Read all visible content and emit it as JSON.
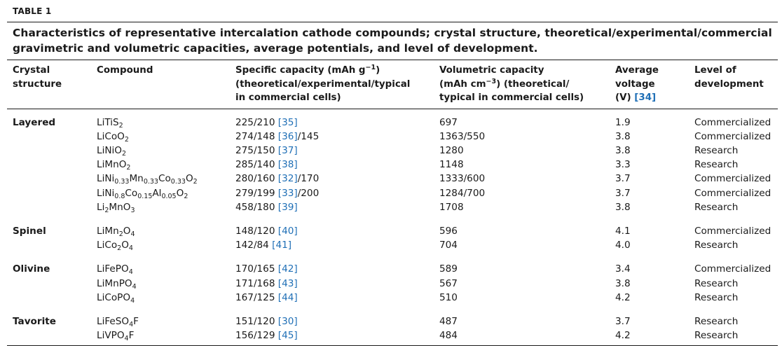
{
  "table_label": "TABLE 1",
  "caption": "Characteristics of representative intercalation cathode compounds; crystal structure, theoretical/experimental/commercial gravimetric and volumetric capacities, average potentials, and level of development.",
  "headers": {
    "crystal": "Crystal structure",
    "compound": "Compound",
    "specific_l1_a": "Specific capacity (mAh g",
    "specific_l1_sup": "−1",
    "specific_l1_b": ")",
    "specific_l2": "(theoretical/experimental/typical",
    "specific_l3": "in commercial cells)",
    "volumetric_l1": "Volumetric capacity",
    "volumetric_l2_a": "(mAh cm",
    "volumetric_l2_sup": "−3",
    "volumetric_l2_b": ") (theoretical/",
    "volumetric_l3": "typical in commercial cells)",
    "voltage_l1": "Average",
    "voltage_l2": "voltage",
    "voltage_l3_a": "(V) ",
    "voltage_ref": "[34]",
    "level": "Level of development"
  },
  "groups": [
    {
      "name": "Layered",
      "rows": [
        {
          "compound": [
            [
              "LiTiS",
              ""
            ],
            [
              "2",
              "sub"
            ]
          ],
          "spec": "225/210 ",
          "ref": "[35]",
          "spec_tail": "",
          "vol": "697",
          "volt": "1.9",
          "level": "Commercialized"
        },
        {
          "compound": [
            [
              "LiCoO",
              ""
            ],
            [
              "2",
              "sub"
            ]
          ],
          "spec": "274/148 ",
          "ref": "[36]",
          "spec_tail": "/145",
          "vol": "1363/550",
          "volt": "3.8",
          "level": "Commercialized"
        },
        {
          "compound": [
            [
              "LiNiO",
              ""
            ],
            [
              "2",
              "sub"
            ]
          ],
          "spec": "275/150 ",
          "ref": "[37]",
          "spec_tail": "",
          "vol": "1280",
          "volt": "3.8",
          "level": "Research"
        },
        {
          "compound": [
            [
              "LiMnO",
              ""
            ],
            [
              "2",
              "sub"
            ]
          ],
          "spec": "285/140 ",
          "ref": "[38]",
          "spec_tail": "",
          "vol": "1148",
          "volt": "3.3",
          "level": "Research"
        },
        {
          "compound": [
            [
              "LiNi",
              ""
            ],
            [
              "0.33",
              "sub"
            ],
            [
              "Mn",
              ""
            ],
            [
              "0.33",
              "sub"
            ],
            [
              "Co",
              ""
            ],
            [
              "0.33",
              "sub"
            ],
            [
              "O",
              ""
            ],
            [
              "2",
              "sub"
            ]
          ],
          "spec": "280/160 ",
          "ref": "[32]",
          "spec_tail": "/170",
          "vol": "1333/600",
          "volt": "3.7",
          "level": "Commercialized"
        },
        {
          "compound": [
            [
              "LiNi",
              ""
            ],
            [
              "0.8",
              "sub"
            ],
            [
              "Co",
              ""
            ],
            [
              "0.15",
              "sub"
            ],
            [
              "Al",
              ""
            ],
            [
              "0.05",
              "sub"
            ],
            [
              "O",
              ""
            ],
            [
              "2",
              "sub"
            ]
          ],
          "spec": "279/199 ",
          "ref": "[33]",
          "spec_tail": "/200",
          "vol": "1284/700",
          "volt": "3.7",
          "level": "Commercialized"
        },
        {
          "compound": [
            [
              "Li",
              ""
            ],
            [
              "2",
              "sub"
            ],
            [
              "MnO",
              ""
            ],
            [
              "3",
              "sub"
            ]
          ],
          "spec": "458/180 ",
          "ref": "[39]",
          "spec_tail": "",
          "vol": "1708",
          "volt": "3.8",
          "level": "Research"
        }
      ]
    },
    {
      "name": "Spinel",
      "rows": [
        {
          "compound": [
            [
              "LiMn",
              ""
            ],
            [
              "2",
              "sub"
            ],
            [
              "O",
              ""
            ],
            [
              "4",
              "sub"
            ]
          ],
          "spec": "148/120 ",
          "ref": "[40]",
          "spec_tail": "",
          "vol": "596",
          "volt": "4.1",
          "level": "Commercialized"
        },
        {
          "compound": [
            [
              "LiCo",
              ""
            ],
            [
              "2",
              "sub"
            ],
            [
              "O",
              ""
            ],
            [
              "4",
              "sub"
            ]
          ],
          "spec": "142/84 ",
          "ref": "[41]",
          "spec_tail": "",
          "vol": "704",
          "volt": "4.0",
          "level": "Research"
        }
      ]
    },
    {
      "name": "Olivine",
      "rows": [
        {
          "compound": [
            [
              "LiFePO",
              ""
            ],
            [
              "4",
              "sub"
            ]
          ],
          "spec": "170/165 ",
          "ref": "[42]",
          "spec_tail": "",
          "vol": "589",
          "volt": "3.4",
          "level": "Commercialized"
        },
        {
          "compound": [
            [
              "LiMnPO",
              ""
            ],
            [
              "4",
              "sub"
            ]
          ],
          "spec": "171/168 ",
          "ref": "[43]",
          "spec_tail": "",
          "vol": "567",
          "volt": "3.8",
          "level": "Research"
        },
        {
          "compound": [
            [
              "LiCoPO",
              ""
            ],
            [
              "4",
              "sub"
            ]
          ],
          "spec": "167/125 ",
          "ref": "[44]",
          "spec_tail": "",
          "vol": "510",
          "volt": "4.2",
          "level": "Research"
        }
      ]
    },
    {
      "name": "Tavorite",
      "rows": [
        {
          "compound": [
            [
              "LiFeSO",
              ""
            ],
            [
              "4",
              "sub"
            ],
            [
              "F",
              ""
            ]
          ],
          "spec": "151/120 ",
          "ref": "[30]",
          "spec_tail": "",
          "vol": "487",
          "volt": "3.7",
          "level": "Research"
        },
        {
          "compound": [
            [
              "LiVPO",
              ""
            ],
            [
              "4",
              "sub"
            ],
            [
              "F",
              ""
            ]
          ],
          "spec": "156/129 ",
          "ref": "[45]",
          "spec_tail": "",
          "vol": "484",
          "volt": "4.2",
          "level": "Research"
        }
      ]
    }
  ],
  "colors": {
    "text": "#1a1a1a",
    "reference_link": "#1f6fb6"
  }
}
